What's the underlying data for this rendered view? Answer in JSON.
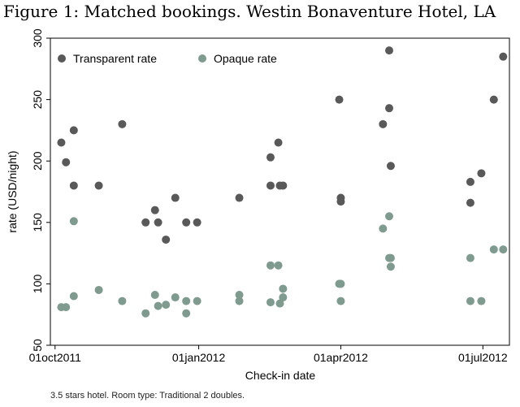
{
  "figure": {
    "title": "Figure 1: Matched bookings. Westin Bonaventure Hotel, LA",
    "note": "3.5 stars hotel. Room type: Traditional 2 doubles."
  },
  "colors": {
    "transparent": "#595959",
    "opaque": "#7f9a8e",
    "axis": "#000000",
    "frame": "#000000"
  },
  "chart_data": {
    "type": "scatter",
    "title": "",
    "xlabel": "Check-in date",
    "ylabel": "rate (USD/night)",
    "xlim": [
      "2011-09-28",
      "2012-07-18"
    ],
    "ylim": [
      50,
      300
    ],
    "yticks": [
      50,
      100,
      150,
      200,
      250,
      300
    ],
    "xticks": [
      "2011-10-01",
      "2012-01-01",
      "2012-04-01",
      "2012-07-01"
    ],
    "xtick_labels": [
      "01oct2011",
      "01jan2012",
      "01apr2012",
      "01jul2012"
    ],
    "grid": false,
    "legend_position": "top",
    "series": [
      {
        "name": "Transparent rate",
        "color": "#595959",
        "points": [
          {
            "x": "2011-10-05",
            "y": 215
          },
          {
            "x": "2011-10-08",
            "y": 199
          },
          {
            "x": "2011-10-13",
            "y": 225
          },
          {
            "x": "2011-10-13",
            "y": 180
          },
          {
            "x": "2011-10-29",
            "y": 180
          },
          {
            "x": "2011-11-13",
            "y": 230
          },
          {
            "x": "2011-11-28",
            "y": 150
          },
          {
            "x": "2011-12-04",
            "y": 160
          },
          {
            "x": "2011-12-06",
            "y": 150
          },
          {
            "x": "2011-12-11",
            "y": 136
          },
          {
            "x": "2011-12-17",
            "y": 170
          },
          {
            "x": "2011-12-24",
            "y": 150
          },
          {
            "x": "2011-12-31",
            "y": 150
          },
          {
            "x": "2012-01-27",
            "y": 170
          },
          {
            "x": "2012-02-16",
            "y": 203
          },
          {
            "x": "2012-02-16",
            "y": 180
          },
          {
            "x": "2012-02-21",
            "y": 215
          },
          {
            "x": "2012-02-22",
            "y": 180
          },
          {
            "x": "2012-02-24",
            "y": 180
          },
          {
            "x": "2012-03-31",
            "y": 250
          },
          {
            "x": "2012-04-01",
            "y": 170
          },
          {
            "x": "2012-04-01",
            "y": 167
          },
          {
            "x": "2012-04-28",
            "y": 230
          },
          {
            "x": "2012-05-02",
            "y": 290
          },
          {
            "x": "2012-05-02",
            "y": 243
          },
          {
            "x": "2012-05-03",
            "y": 196
          },
          {
            "x": "2012-06-23",
            "y": 183
          },
          {
            "x": "2012-06-23",
            "y": 166
          },
          {
            "x": "2012-06-30",
            "y": 190
          },
          {
            "x": "2012-07-08",
            "y": 250
          },
          {
            "x": "2012-07-14",
            "y": 285
          }
        ]
      },
      {
        "name": "Opaque rate",
        "color": "#7f9a8e",
        "points": [
          {
            "x": "2011-10-05",
            "y": 81
          },
          {
            "x": "2011-10-08",
            "y": 81
          },
          {
            "x": "2011-10-13",
            "y": 90
          },
          {
            "x": "2011-10-13",
            "y": 151
          },
          {
            "x": "2011-10-29",
            "y": 95
          },
          {
            "x": "2011-11-13",
            "y": 86
          },
          {
            "x": "2011-11-28",
            "y": 76
          },
          {
            "x": "2011-12-04",
            "y": 91
          },
          {
            "x": "2011-12-06",
            "y": 82
          },
          {
            "x": "2011-12-11",
            "y": 83
          },
          {
            "x": "2011-12-17",
            "y": 89
          },
          {
            "x": "2011-12-24",
            "y": 86
          },
          {
            "x": "2011-12-24",
            "y": 76
          },
          {
            "x": "2011-12-31",
            "y": 86
          },
          {
            "x": "2012-01-27",
            "y": 91
          },
          {
            "x": "2012-01-27",
            "y": 86
          },
          {
            "x": "2012-02-16",
            "y": 115
          },
          {
            "x": "2012-02-16",
            "y": 85
          },
          {
            "x": "2012-02-21",
            "y": 115
          },
          {
            "x": "2012-02-22",
            "y": 84
          },
          {
            "x": "2012-02-24",
            "y": 89
          },
          {
            "x": "2012-02-24",
            "y": 96
          },
          {
            "x": "2012-03-31",
            "y": 100
          },
          {
            "x": "2012-04-01",
            "y": 100
          },
          {
            "x": "2012-04-01",
            "y": 86
          },
          {
            "x": "2012-04-28",
            "y": 145
          },
          {
            "x": "2012-05-02",
            "y": 155
          },
          {
            "x": "2012-05-02",
            "y": 121
          },
          {
            "x": "2012-05-03",
            "y": 121
          },
          {
            "x": "2012-05-03",
            "y": 114
          },
          {
            "x": "2012-06-23",
            "y": 86
          },
          {
            "x": "2012-06-23",
            "y": 121
          },
          {
            "x": "2012-06-30",
            "y": 86
          },
          {
            "x": "2012-07-08",
            "y": 128
          },
          {
            "x": "2012-07-14",
            "y": 128
          }
        ]
      }
    ]
  }
}
